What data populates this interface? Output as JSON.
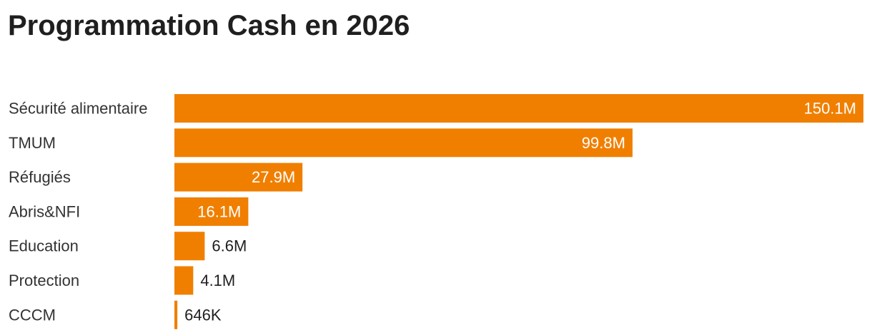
{
  "chart_data": {
    "type": "bar",
    "orientation": "horizontal",
    "title": "Programmation Cash en 2026",
    "categories": [
      "Sécurité alimentaire",
      "TMUM",
      "Réfugiés",
      "Abris&NFI",
      "Education",
      "Protection",
      "CCCM"
    ],
    "values": [
      150.1,
      99.8,
      27.9,
      16.1,
      6.6,
      4.1,
      0.646
    ],
    "value_labels": [
      "150.1M",
      "99.8M",
      "27.9M",
      "16.1M",
      "6.6M",
      "4.1M",
      "646K"
    ],
    "unit": "millions",
    "xlim": [
      0,
      150.1
    ],
    "grid": false,
    "legend": "none",
    "colors": {
      "bar": "#f07f00",
      "label_inside": "#ffffff",
      "label_outside": "#1f1f1f"
    }
  }
}
